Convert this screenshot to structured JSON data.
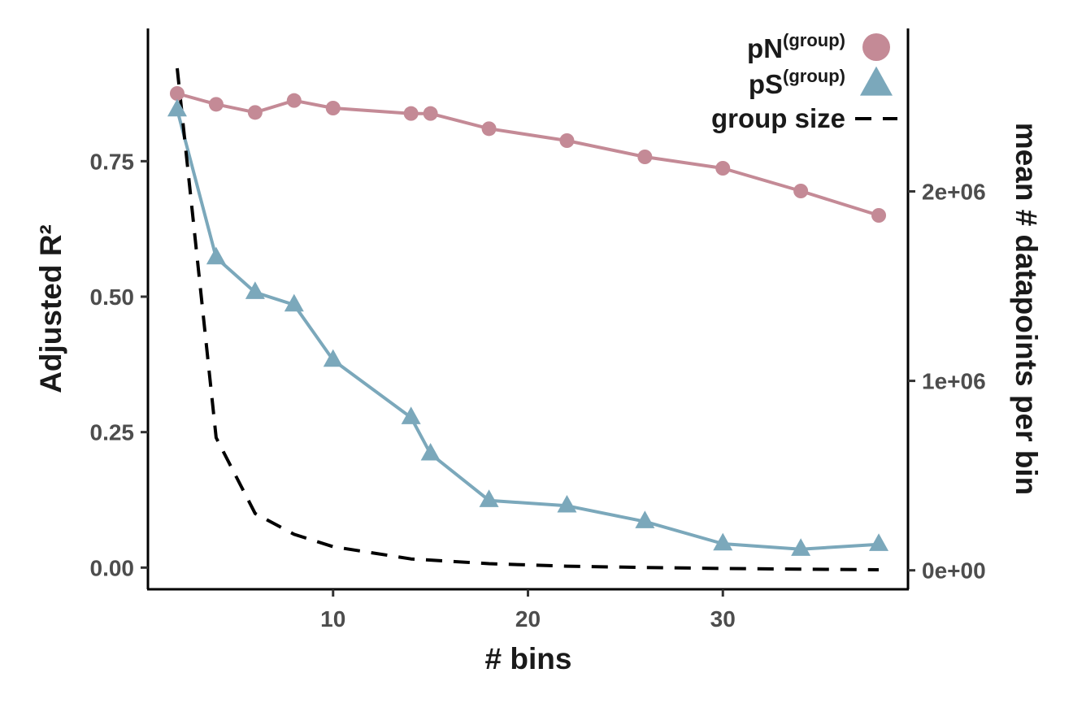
{
  "chart_data": {
    "type": "line",
    "xlabel": "# bins",
    "ylabel": "Adjusted R²",
    "y2label": "mean # datapoints per bin",
    "xlim": [
      0.5,
      39.5
    ],
    "ylim": [
      -0.04,
      0.995
    ],
    "y2lim": [
      -100000,
      2860000
    ],
    "x_ticks": [
      10,
      20,
      30
    ],
    "x_tick_labels": [
      "10",
      "20",
      "30"
    ],
    "y_ticks": [
      0,
      0.25,
      0.5,
      0.75
    ],
    "y_tick_labels": [
      "0.00",
      "0.25",
      "0.50",
      "0.75"
    ],
    "y2_ticks": [
      0,
      1000000,
      2000000
    ],
    "y2_tick_labels": [
      "0e+00",
      "1e+06",
      "2e+06"
    ],
    "grid": false,
    "legend_position": "top-right",
    "series": [
      {
        "name": "pN",
        "name_sup": "(group)",
        "axis": "left",
        "marker": "circle",
        "color": "#c48a96",
        "x": [
          2,
          4,
          6,
          8,
          10,
          14,
          15,
          18,
          22,
          26,
          30,
          34,
          38
        ],
        "values": [
          0.875,
          0.855,
          0.84,
          0.862,
          0.848,
          0.838,
          0.838,
          0.81,
          0.788,
          0.758,
          0.737,
          0.695,
          0.65
        ]
      },
      {
        "name": "pS",
        "name_sup": "(group)",
        "axis": "left",
        "marker": "triangle",
        "color": "#7ba8bb",
        "x": [
          2,
          4,
          6,
          8,
          10,
          14,
          15,
          18,
          22,
          26,
          30,
          34,
          38
        ],
        "values": [
          0.845,
          0.572,
          0.508,
          0.485,
          0.383,
          0.277,
          0.21,
          0.124,
          0.114,
          0.085,
          0.044,
          0.034,
          0.043
        ]
      },
      {
        "name": "group size",
        "axis": "right",
        "marker": "none",
        "dash": true,
        "color": "#000000",
        "x": [
          2,
          4,
          6,
          8,
          10,
          14,
          18,
          22,
          26,
          30,
          34,
          38
        ],
        "values": [
          2650000,
          700000,
          300000,
          190000,
          125000,
          60000,
          35000,
          22000,
          15000,
          10000,
          6000,
          3000
        ]
      }
    ]
  }
}
